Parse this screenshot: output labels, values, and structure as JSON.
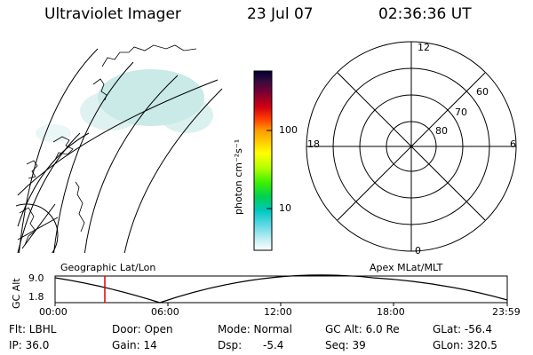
{
  "header": {
    "instrument": "Ultraviolet Imager",
    "date": "23 Jul 07",
    "time": "02:36:36 UT"
  },
  "colorbar": {
    "unit_label": "photon cm⁻²s⁻¹",
    "ticks": [
      "100",
      "10"
    ],
    "ramp": [
      "#000033",
      "#2a0a3c",
      "#4b0f3f",
      "#7a0033",
      "#b3001a",
      "#e00000",
      "#ff3300",
      "#ff8c00",
      "#ffc800",
      "#ffff00",
      "#c8ff00",
      "#66ff00",
      "#00e000",
      "#00c87a",
      "#00c8c8",
      "#55d6e0",
      "#a8e6ee",
      "#ffffff"
    ]
  },
  "left_map": {
    "caption": "Geographic Lat/Lon"
  },
  "polar": {
    "caption": "Apex MLat/MLT",
    "mlt_labels": {
      "top": "12",
      "left": "18",
      "right": "6",
      "bottom": "0"
    },
    "lat_labels": [
      "60",
      "70",
      "80"
    ]
  },
  "timeline": {
    "axis_title": "GC Alt",
    "y_ticks": [
      "9.0",
      "1.8"
    ],
    "x_ticks": [
      "00:00",
      "06:00",
      "12:00",
      "18:00",
      "23:59"
    ],
    "marker_color": "#e00000"
  },
  "status": {
    "filter": "Flt: LBHL",
    "door": "Door: Open",
    "mode": "Mode: Normal",
    "gc_alt": "GC Alt: 6.0 Re",
    "glat": "GLat: -56.4",
    "ip": "IP: 36.0",
    "gain": "Gain: 14",
    "dsp_label": "Dsp:",
    "dsp_value": "-5.4",
    "seq": "Seq: 39",
    "glon": "GLon: 320.5"
  }
}
